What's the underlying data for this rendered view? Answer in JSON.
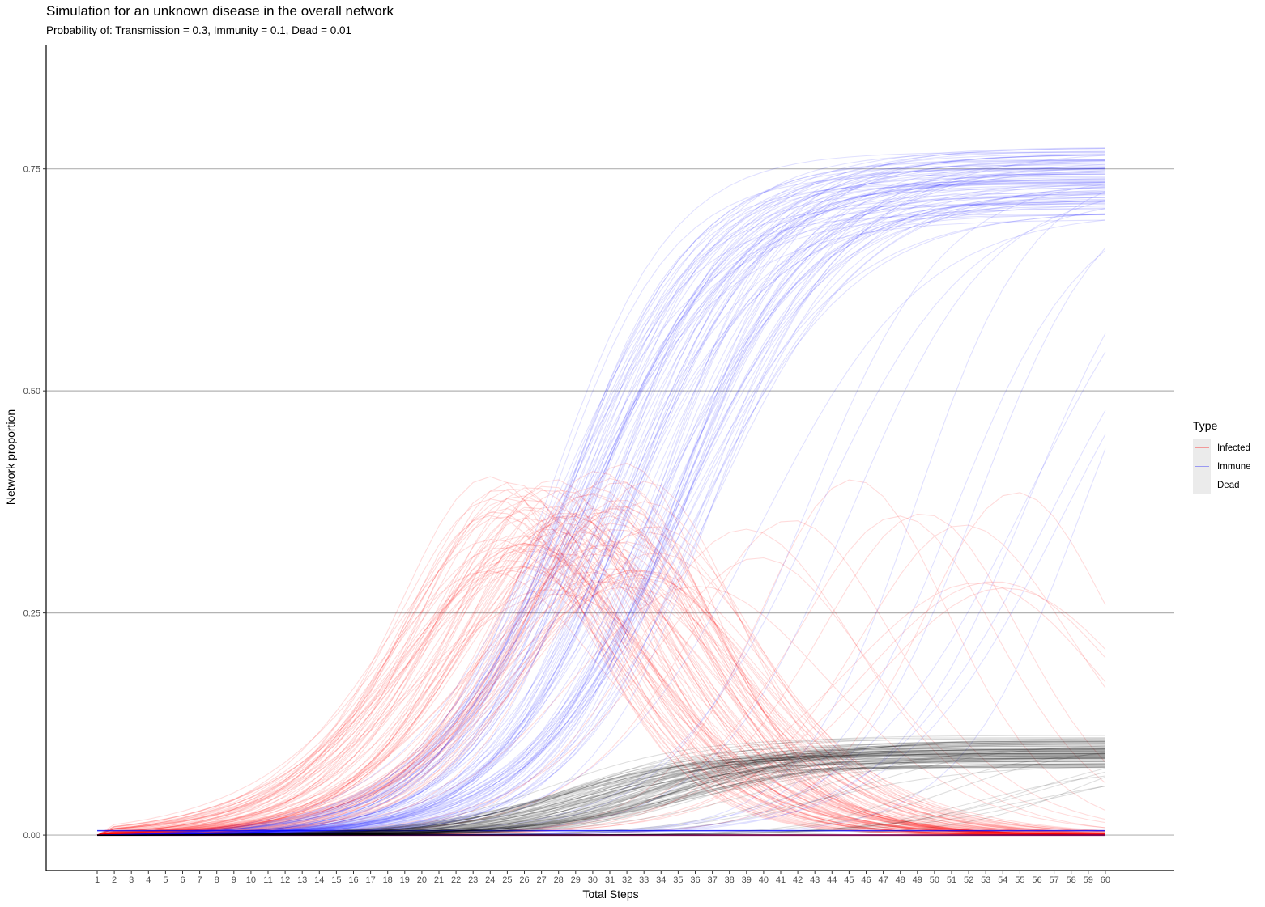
{
  "chart_data": {
    "type": "line",
    "title": "Simulation for an unknown disease in the overall network",
    "subtitle": "Probability of: Transmission = 0.3, Immunity = 0.1, Dead = 0.01",
    "xlabel": "Total Steps",
    "ylabel": "Network proportion",
    "x_ticks": [
      1,
      2,
      3,
      4,
      5,
      6,
      7,
      8,
      9,
      10,
      11,
      12,
      13,
      14,
      15,
      16,
      17,
      18,
      19,
      20,
      21,
      22,
      23,
      24,
      25,
      26,
      27,
      28,
      29,
      30,
      31,
      32,
      33,
      34,
      35,
      36,
      37,
      38,
      39,
      40,
      41,
      42,
      43,
      44,
      45,
      46,
      47,
      48,
      49,
      50,
      51,
      52,
      53,
      54,
      55,
      56,
      57,
      58,
      59,
      60
    ],
    "y_ticks": [
      "0.00",
      "0.25",
      "0.50",
      "0.75"
    ],
    "ylim": [
      -0.04,
      0.89
    ],
    "grid": "horizontal major",
    "legend": {
      "title": "Type",
      "position": "right",
      "entries": [
        {
          "name": "Infected",
          "color": "#ff0000"
        },
        {
          "name": "Immune",
          "color": "#0000ff"
        },
        {
          "name": "Dead",
          "color": "#000000"
        }
      ]
    },
    "series_note_runs": 100,
    "series": [
      {
        "name": "Infected",
        "color": "#ff0000",
        "typical_peak": 0.42,
        "peak_range": [
          0.37,
          0.5
        ],
        "peak_step_range": [
          18,
          46
        ],
        "final_range": [
          0.01,
          0.3
        ]
      },
      {
        "name": "Immune",
        "color": "#0000ff",
        "final_range": [
          0.57,
          0.85
        ],
        "typical_final": 0.82
      },
      {
        "name": "Dead",
        "color": "#000000",
        "final_range": [
          0.04,
          0.1
        ],
        "typical_final": 0.085
      }
    ]
  }
}
